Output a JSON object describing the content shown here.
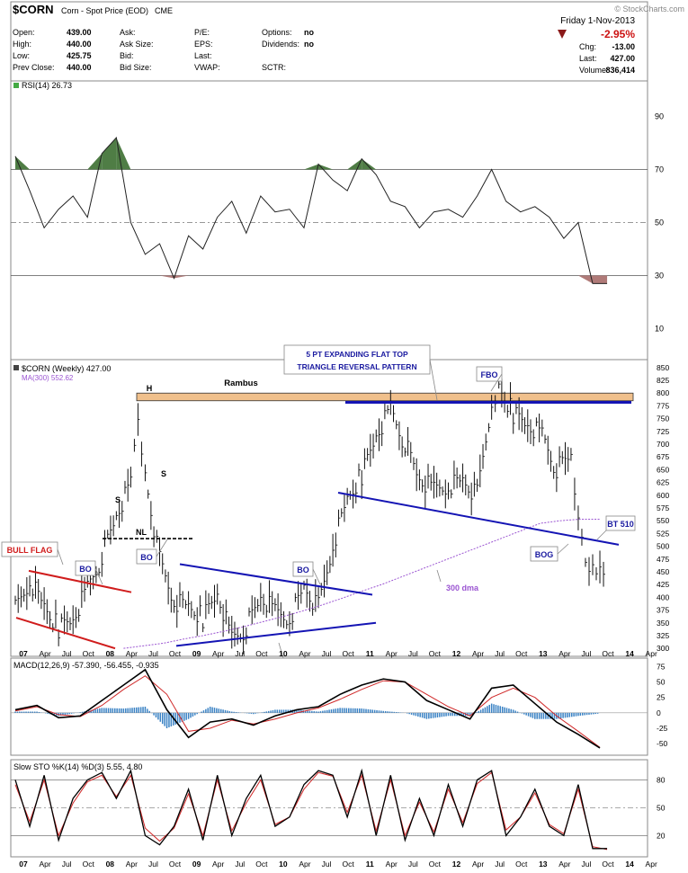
{
  "header": {
    "symbol": "$CORN",
    "description": "Corn - Spot Price (EOD)",
    "exchange": "CME",
    "watermark": "© StockCharts.com",
    "date": "Friday  1-Nov-2013",
    "change_pct": "-2.95%",
    "fields_left": [
      {
        "label": "Open:",
        "value": "439.00"
      },
      {
        "label": "High:",
        "value": "440.00"
      },
      {
        "label": "Low:",
        "value": "425.75"
      },
      {
        "label": "Prev Close:",
        "value": "440.00"
      }
    ],
    "fields_mid": [
      {
        "label": "Ask:",
        "value": ""
      },
      {
        "label": "Ask Size:",
        "value": ""
      },
      {
        "label": "Bid:",
        "value": ""
      },
      {
        "label": "Bid Size:",
        "value": ""
      }
    ],
    "fields_mid2": [
      {
        "label": "P/E:",
        "value": ""
      },
      {
        "label": "EPS:",
        "value": ""
      },
      {
        "label": "Last:",
        "value": ""
      },
      {
        "label": "VWAP:",
        "value": ""
      }
    ],
    "fields_mid3": [
      {
        "label": "Options:",
        "value": "no"
      },
      {
        "label": "Dividends:",
        "value": "no"
      },
      {
        "label": "",
        "value": ""
      },
      {
        "label": "SCTR:",
        "value": ""
      }
    ],
    "fields_right": [
      {
        "label": "Chg:",
        "value": "-13.00"
      },
      {
        "label": "Last:",
        "value": "427.00"
      },
      {
        "label": "Volume:",
        "value": "836,414"
      }
    ]
  },
  "colors": {
    "price": "#000000",
    "trend_blue": "#1414b4",
    "flag_red": "#d01c1c",
    "resistance_band": "#f0c08c",
    "ma_purple": "#9b55d2",
    "signal_red": "#d02828",
    "histogram": "#3a82c4",
    "rsi_fill": "#4f7d45",
    "rsi_low_fill": "#b07a78",
    "down_arrow": "#8b1a1a",
    "label_blue": "#1a1aa0"
  },
  "chart_data": [
    {
      "type": "line",
      "panel": "rsi",
      "title": "RSI(14) 26.73",
      "ylim": [
        0,
        100
      ],
      "yticks": [
        10,
        30,
        50,
        70,
        90
      ],
      "reference_lines": [
        30,
        50,
        70
      ],
      "x": [
        "2007-01",
        "2007-03",
        "2007-05",
        "2007-07",
        "2007-09",
        "2007-11",
        "2008-01",
        "2008-03",
        "2008-05",
        "2008-07",
        "2008-09",
        "2008-11",
        "2009-01",
        "2009-03",
        "2009-05",
        "2009-07",
        "2009-09",
        "2009-11",
        "2010-01",
        "2010-03",
        "2010-05",
        "2010-07",
        "2010-09",
        "2010-11",
        "2011-01",
        "2011-03",
        "2011-05",
        "2011-07",
        "2011-09",
        "2011-11",
        "2012-01",
        "2012-03",
        "2012-05",
        "2012-07",
        "2012-09",
        "2012-11",
        "2013-01",
        "2013-03",
        "2013-05",
        "2013-07",
        "2013-09",
        "2013-11"
      ],
      "values": [
        75,
        62,
        48,
        55,
        60,
        52,
        76,
        82,
        50,
        38,
        42,
        29,
        45,
        40,
        52,
        58,
        46,
        60,
        54,
        55,
        48,
        72,
        66,
        62,
        74,
        68,
        58,
        56,
        48,
        54,
        55,
        52,
        60,
        70,
        58,
        54,
        56,
        52,
        44,
        50,
        27,
        27
      ]
    },
    {
      "type": "bar",
      "panel": "price",
      "title": "$CORN (Weekly) 427.00",
      "ma_label": "MA(300) 552.62",
      "ylim": [
        295,
        855
      ],
      "yticks": [
        300,
        325,
        350,
        375,
        400,
        425,
        450,
        475,
        500,
        525,
        550,
        575,
        600,
        625,
        650,
        675,
        700,
        725,
        750,
        775,
        800,
        825,
        850
      ],
      "x_labels": [
        "07",
        "Apr",
        "Jul",
        "Oct",
        "08",
        "Apr",
        "Jul",
        "Oct",
        "09",
        "Apr",
        "Jul",
        "Oct",
        "10",
        "Apr",
        "Jul",
        "Oct",
        "11",
        "Apr",
        "Jul",
        "Oct",
        "12",
        "Apr",
        "Jul",
        "Oct",
        "13",
        "Apr",
        "Jul",
        "Oct",
        "14",
        "Apr"
      ],
      "x": [
        "2007-01",
        "2007-03",
        "2007-05",
        "2007-07",
        "2007-09",
        "2007-11",
        "2008-01",
        "2008-03",
        "2008-05",
        "2008-06",
        "2008-07",
        "2008-09",
        "2008-11",
        "2009-01",
        "2009-03",
        "2009-05",
        "2009-07",
        "2009-09",
        "2009-11",
        "2010-01",
        "2010-03",
        "2010-05",
        "2010-07",
        "2010-09",
        "2010-11",
        "2011-01",
        "2011-03",
        "2011-05",
        "2011-07",
        "2011-09",
        "2011-11",
        "2012-01",
        "2012-03",
        "2012-05",
        "2012-07",
        "2012-08",
        "2012-10",
        "2012-12",
        "2013-02",
        "2013-04",
        "2013-06",
        "2013-07",
        "2013-08",
        "2013-09",
        "2013-10",
        "2013-11"
      ],
      "values": [
        375,
        430,
        380,
        340,
        360,
        420,
        480,
        560,
        620,
        760,
        640,
        470,
        390,
        380,
        360,
        410,
        320,
        340,
        400,
        370,
        360,
        420,
        380,
        500,
        590,
        640,
        720,
        770,
        700,
        630,
        610,
        620,
        630,
        600,
        780,
        810,
        760,
        740,
        720,
        650,
        680,
        540,
        480,
        460,
        440,
        427
      ],
      "ma_300": [
        300,
        305,
        310,
        318,
        325,
        333,
        342,
        352,
        362,
        373,
        385,
        398,
        412,
        425,
        440,
        455,
        470,
        485,
        500,
        515,
        530,
        545,
        550,
        553,
        553
      ],
      "annotations": [
        "Rambus",
        "H",
        "S",
        "S",
        "NL",
        "BULL FLAG",
        "BO",
        "BO",
        "BO",
        "5 PT TRIANGLE REVERSAL PATTERN",
        "5 PT EXPANDING FLAT TOP",
        "TRIANGLE REVERSAL PATTERN",
        "FBO",
        "300 dma",
        "BT 510",
        "BOG"
      ]
    },
    {
      "type": "line",
      "panel": "macd",
      "title": "MACD(12,26,9) -57.390, -56.455, -0.935",
      "ylim": [
        -60,
        80
      ],
      "yticks": [
        -50,
        -25,
        0,
        25,
        50,
        75
      ],
      "x": [
        "2007-01",
        "2007-04",
        "2007-07",
        "2007-10",
        "2008-01",
        "2008-04",
        "2008-07",
        "2008-10",
        "2009-01",
        "2009-04",
        "2009-07",
        "2009-10",
        "2010-01",
        "2010-04",
        "2010-07",
        "2010-10",
        "2011-01",
        "2011-04",
        "2011-07",
        "2011-10",
        "2012-01",
        "2012-04",
        "2012-07",
        "2012-10",
        "2013-01",
        "2013-04",
        "2013-07",
        "2013-10"
      ],
      "series": [
        {
          "values": [
            5,
            12,
            -8,
            -5,
            20,
            45,
            70,
            5,
            -40,
            -15,
            -10,
            -20,
            -5,
            5,
            10,
            30,
            45,
            55,
            50,
            20,
            5,
            -10,
            40,
            45,
            15,
            -15,
            -35,
            -57
          ]
        },
        {
          "values": [
            3,
            10,
            -3,
            -6,
            12,
            38,
            60,
            30,
            -30,
            -25,
            -12,
            -18,
            -10,
            0,
            8,
            22,
            38,
            52,
            50,
            30,
            10,
            -5,
            25,
            40,
            25,
            -5,
            -30,
            -56
          ]
        },
        {
          "values": [
            2,
            2,
            -5,
            1,
            8,
            7,
            10,
            -25,
            -10,
            10,
            2,
            -2,
            5,
            5,
            2,
            8,
            7,
            3,
            0,
            -10,
            -5,
            -5,
            15,
            5,
            -10,
            -10,
            -5,
            -1
          ]
        }
      ]
    },
    {
      "type": "line",
      "panel": "sto",
      "title": "Slow STO %K(14) %D(3) 5.55, 4.80",
      "ylim": [
        0,
        95
      ],
      "yticks": [
        20,
        50,
        80
      ],
      "reference_lines": [
        20,
        50,
        80
      ],
      "x": [
        "2007-01",
        "2007-03",
        "2007-05",
        "2007-07",
        "2007-09",
        "2007-11",
        "2008-01",
        "2008-03",
        "2008-05",
        "2008-07",
        "2008-09",
        "2008-11",
        "2009-01",
        "2009-03",
        "2009-05",
        "2009-07",
        "2009-09",
        "2009-11",
        "2010-01",
        "2010-03",
        "2010-05",
        "2010-07",
        "2010-09",
        "2010-11",
        "2011-01",
        "2011-03",
        "2011-05",
        "2011-07",
        "2011-09",
        "2011-11",
        "2012-01",
        "2012-03",
        "2012-05",
        "2012-07",
        "2012-09",
        "2012-11",
        "2013-01",
        "2013-03",
        "2013-05",
        "2013-07",
        "2013-09",
        "2013-11"
      ],
      "series": [
        {
          "values": [
            80,
            30,
            85,
            15,
            60,
            80,
            88,
            60,
            90,
            20,
            10,
            30,
            70,
            15,
            85,
            20,
            60,
            85,
            30,
            40,
            75,
            90,
            85,
            40,
            90,
            20,
            85,
            15,
            60,
            20,
            75,
            30,
            80,
            90,
            20,
            40,
            70,
            30,
            20,
            75,
            6,
            6
          ]
        },
        {
          "values": [
            75,
            35,
            80,
            20,
            55,
            78,
            85,
            62,
            85,
            28,
            14,
            28,
            65,
            20,
            80,
            25,
            55,
            80,
            32,
            40,
            70,
            88,
            84,
            45,
            85,
            25,
            80,
            20,
            56,
            24,
            70,
            34,
            76,
            88,
            26,
            40,
            66,
            32,
            22,
            70,
            8,
            5
          ]
        }
      ]
    }
  ]
}
